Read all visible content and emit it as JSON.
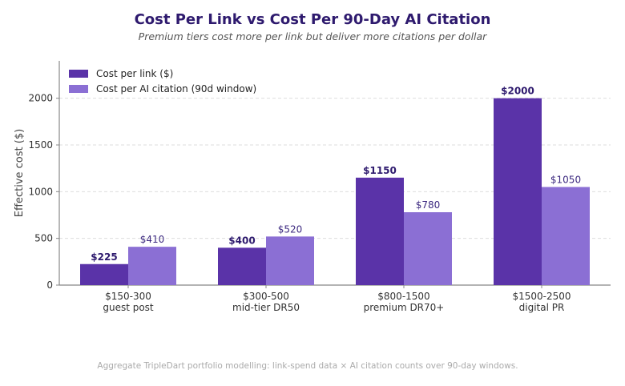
{
  "title": "Cost Per Link vs Cost Per 90-Day AI Citation",
  "subtitle": "Premium tiers cost more per link but deliver more citations per dollar",
  "footnote": "Aggregate TripleDart portfolio modelling: link-spend data × AI citation counts over 90-day windows.",
  "colors": {
    "link": "#5a33a8",
    "citation": "#8b6fd4",
    "axis": "#888888",
    "grid": "#dddddd"
  },
  "chart_data": {
    "type": "bar",
    "categories": [
      [
        "$150-300",
        "guest post"
      ],
      [
        "$300-500",
        "mid-tier DR50"
      ],
      [
        "$800-1500",
        "premium DR70+"
      ],
      [
        "$1500-2500",
        "digital PR"
      ]
    ],
    "series": [
      {
        "name": "Cost per link ($)",
        "values": [
          225,
          400,
          1150,
          2000
        ],
        "labels": [
          "$225",
          "$400",
          "$1150",
          "$2000"
        ]
      },
      {
        "name": "Cost per AI citation (90d window)",
        "values": [
          410,
          520,
          780,
          1050
        ],
        "labels": [
          "$410",
          "$520",
          "$780",
          "$1050"
        ]
      }
    ],
    "ylabel": "Effective cost ($)",
    "xlabel": "",
    "ylim": [
      0,
      2400
    ],
    "yticks": [
      "0",
      "500",
      "1000",
      "1500",
      "2000"
    ],
    "grid": true,
    "legend": "top-left"
  }
}
